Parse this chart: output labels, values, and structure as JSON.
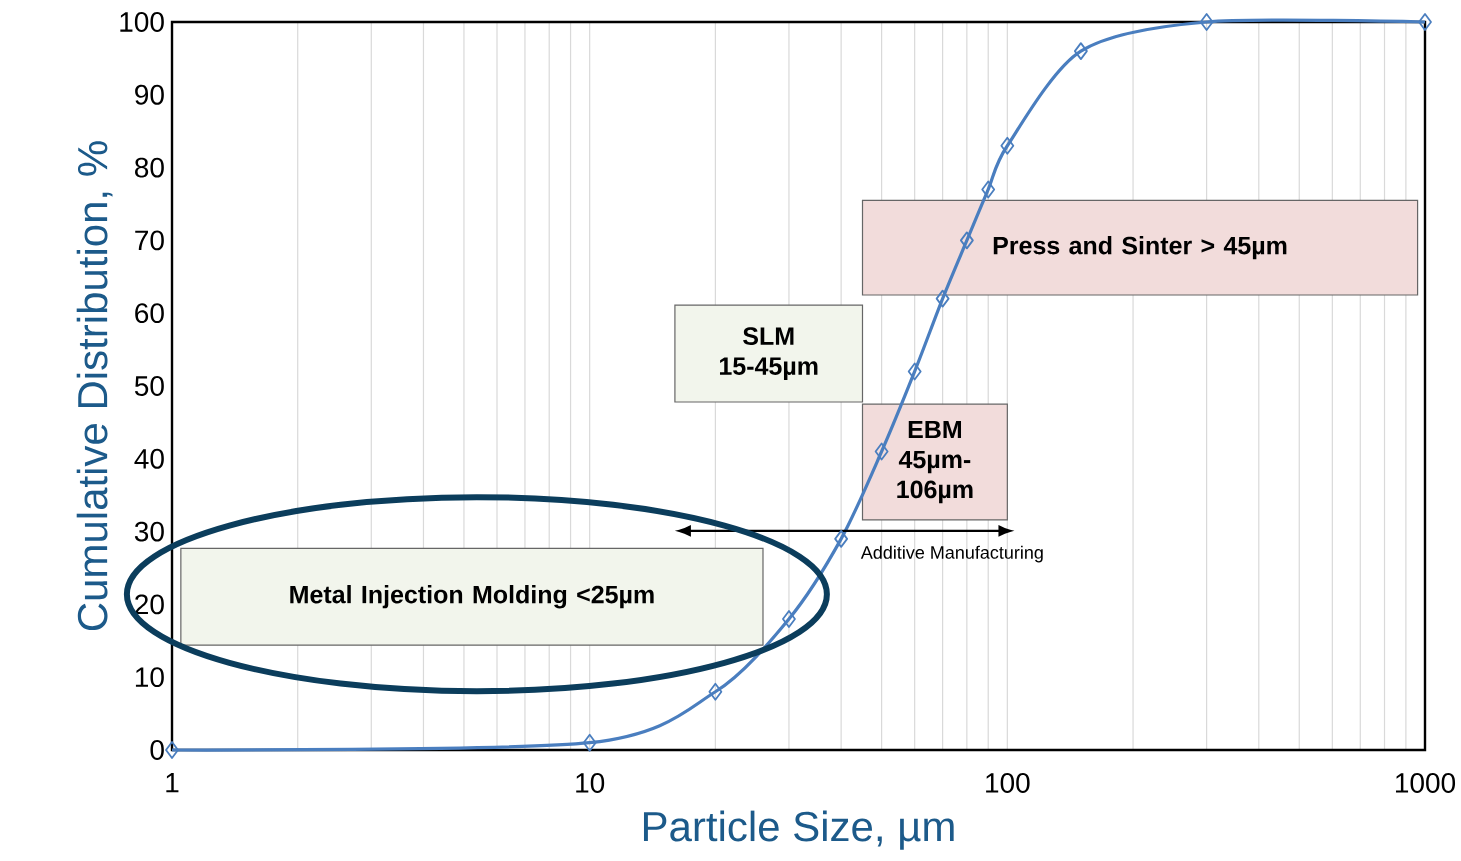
{
  "chart_data": {
    "type": "line",
    "xlabel": "Particle Size, µm",
    "ylabel": "Cumulative Distribution, %",
    "x": [
      1,
      10,
      20,
      30,
      40,
      50,
      60,
      70,
      80,
      90,
      100,
      150,
      300,
      1000
    ],
    "values": [
      0,
      1,
      8,
      18,
      29,
      41,
      52,
      62,
      70,
      77,
      83,
      96,
      100,
      100
    ],
    "color": "#4a7ebf",
    "marker": "diamond",
    "log": "x",
    "grid": "x",
    "xlim": [
      1,
      1000
    ],
    "ylim": [
      0,
      100
    ],
    "xticks": [
      1,
      10,
      100,
      1000
    ],
    "yticks": [
      0,
      10,
      20,
      30,
      40,
      50,
      60,
      70,
      80,
      90,
      100
    ],
    "bands": [
      {
        "axis": "x",
        "from": 45,
        "to": 960,
        "label": "Press and Sinter > 45µm",
        "color": "#f2dcdb"
      },
      {
        "axis": "x",
        "from": 16,
        "to": 45,
        "label": "SLM 15-45µm",
        "color": "#f2f5ec"
      },
      {
        "axis": "x",
        "from": 45,
        "to": 100,
        "label": "EBM 45µm-106µm",
        "color": "#f2dcdb"
      },
      {
        "axis": "x",
        "from": 1.05,
        "to": 26,
        "label": "Metal Injection Molding <25µm",
        "color": "#f2f5ec"
      }
    ],
    "annotations": [
      "Additive Manufacturing"
    ]
  }
}
